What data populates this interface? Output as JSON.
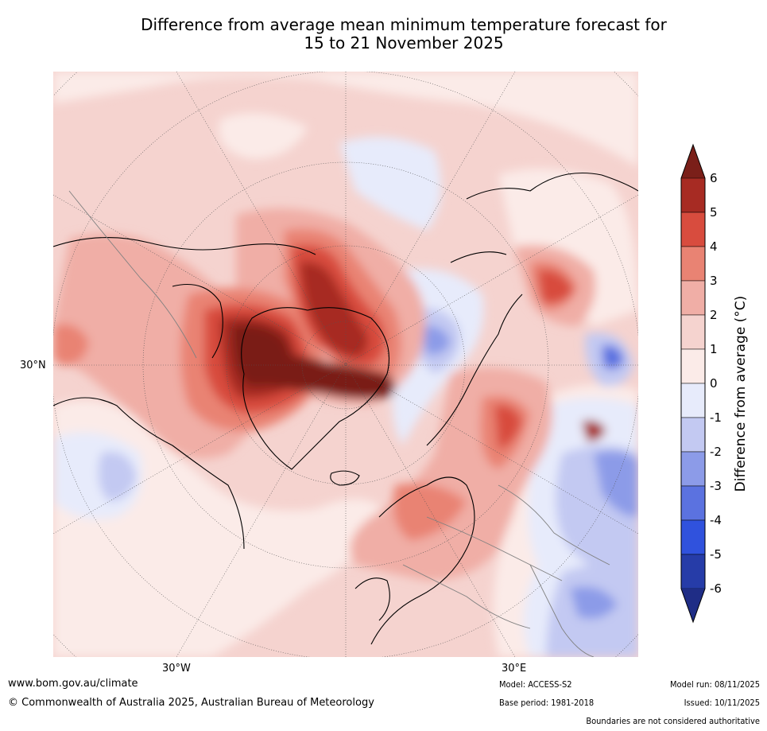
{
  "title": {
    "line1": "Difference from average mean minimum temperature forecast for",
    "line2": "15 to 21 November 2025"
  },
  "map": {
    "region": "Northern Hemisphere polar projection (North Atlantic / Arctic / Europe)",
    "lat_label": "30°N",
    "lon_labels": [
      "30°W",
      "30°E"
    ]
  },
  "colorbar": {
    "label": "Difference from average (°C)",
    "ticks": [
      "6",
      "5",
      "4",
      "3",
      "2",
      "1",
      "0",
      "-1",
      "-2",
      "-3",
      "-4",
      "-5",
      "-6"
    ],
    "colors": {
      "above_6": "#7a1f19",
      "5_to_6": "#a72b23",
      "4_to_5": "#d84c3e",
      "3_to_4": "#e98373",
      "2_to_3": "#f0aea6",
      "1_to_2": "#f5d3cf",
      "0_to_1": "#fbebe8",
      "m1_to_0": "#e7ebfb",
      "m2_to_m1": "#c3c9f2",
      "m3_to_m2": "#8c9be8",
      "m4_to_m3": "#5b72e0",
      "m5_to_m4": "#3052dd",
      "m6_to_m5": "#263ca8",
      "below_m6": "#1f2d86"
    }
  },
  "footer": {
    "url": "www.bom.gov.au/climate",
    "copyright": "© Commonwealth of Australia 2025, Australian Bureau of Meteorology",
    "model": "Model: ACCESS-S2",
    "base_period": "Base period: 1981-2018",
    "model_run": "Model run: 08/11/2025",
    "issued": "Issued: 10/11/2025",
    "disclaimer": "Boundaries are not considered authoritative"
  }
}
